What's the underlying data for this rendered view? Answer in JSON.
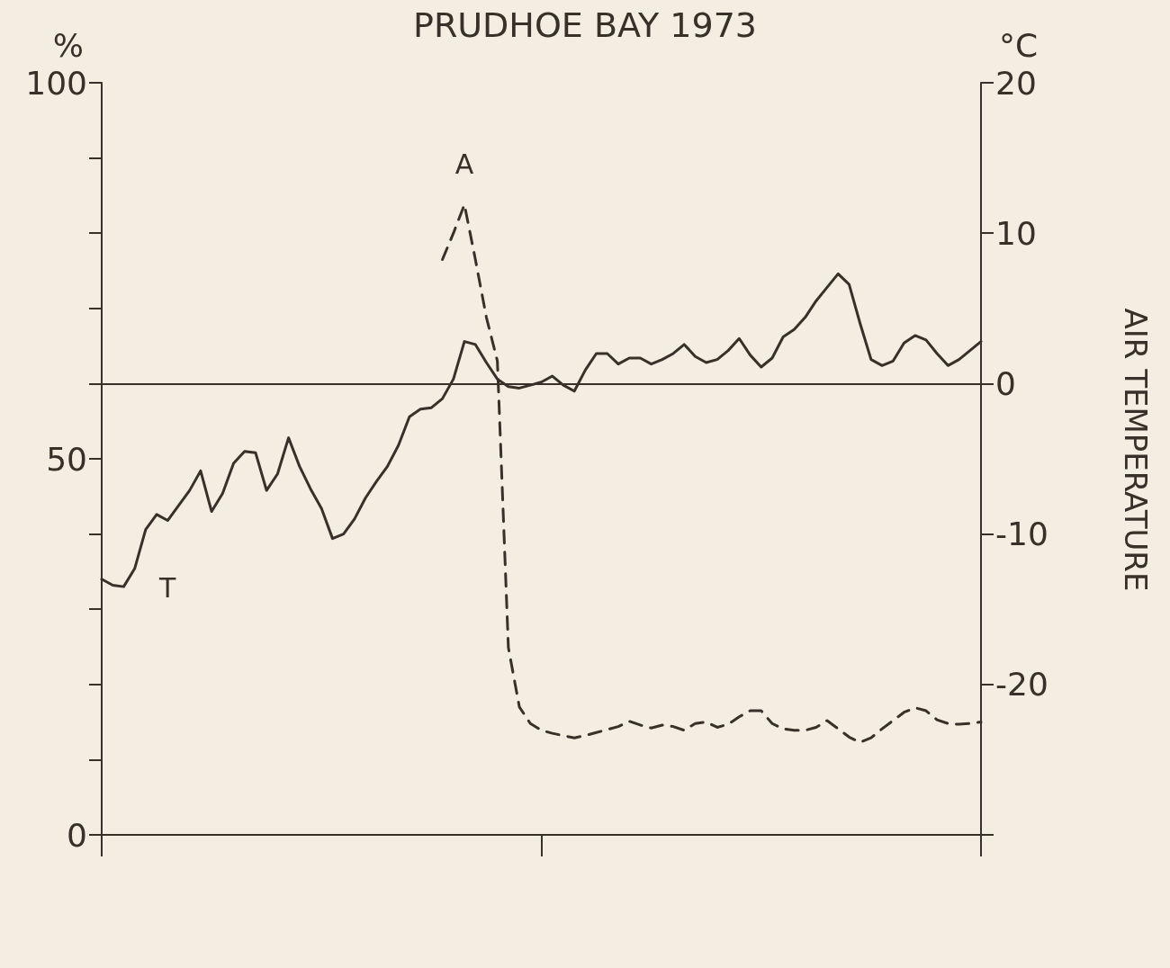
{
  "chart_data": {
    "type": "line",
    "title": "PRUDHOE BAY 1973",
    "ylabel": "%",
    "y2label": "°C",
    "annotations": [
      "AIR TEMPERATURE"
    ],
    "categories": [
      null,
      null,
      null,
      null,
      null,
      null,
      null,
      null,
      null,
      null,
      null,
      null,
      null,
      null,
      null,
      null,
      null,
      null,
      null,
      null,
      null,
      null,
      null,
      null,
      null,
      null,
      null,
      null,
      null,
      null,
      null,
      null,
      null,
      null,
      null,
      null,
      null,
      null,
      null,
      null,
      null,
      null,
      null,
      null,
      null,
      null,
      null,
      null,
      null,
      null,
      null,
      null,
      null,
      null,
      null,
      null,
      null,
      null,
      null,
      null,
      null,
      null,
      null,
      null,
      null,
      null,
      null,
      null,
      null,
      null,
      null,
      null,
      null,
      null,
      null,
      null,
      null,
      null,
      null,
      null,
      null
    ],
    "ylim": [
      0,
      100
    ],
    "yticks": [
      0,
      {
        "value": 10,
        "label": null
      },
      {
        "value": 20,
        "label": null
      },
      {
        "value": 30,
        "label": null
      },
      {
        "value": 40,
        "label": null
      },
      50,
      {
        "value": 60,
        "label": null
      },
      {
        "value": 70,
        "label": null
      },
      {
        "value": 80,
        "label": null
      },
      {
        "value": 90,
        "label": null
      },
      100
    ],
    "y2lim": [
      -30,
      20
    ],
    "y2ticks": [
      {
        "value": -30,
        "label": null
      },
      -20,
      -10,
      0,
      10,
      20
    ],
    "tick_labels": "y",
    "grid": false,
    "legend": false,
    "marker": "none",
    "ref_lines": [
      {
        "axis": "y2",
        "value": 0,
        "color": "#3a302a",
        "line_style": "solid"
      }
    ],
    "series": [
      {
        "name": "A",
        "color": "#3a302a",
        "line_style": "dashed",
        "axis": "y",
        "values": [
          null,
          null,
          null,
          null,
          null,
          null,
          null,
          null,
          null,
          null,
          null,
          null,
          null,
          null,
          null,
          null,
          null,
          null,
          null,
          null,
          null,
          null,
          null,
          null,
          null,
          null,
          null,
          null,
          null,
          null,
          null,
          76.5,
          80,
          83.8,
          76.5,
          68.8,
          63,
          24.9,
          17.0,
          14.8,
          13.9,
          13.5,
          13.2,
          12.9,
          13.2,
          13.6,
          14.0,
          14.4,
          15.1,
          14.6,
          14.2,
          14.6,
          14.4,
          13.9,
          14.8,
          15.0,
          14.3,
          14.7,
          15.7,
          16.5,
          16.5,
          14.8,
          14.1,
          13.9,
          13.9,
          14.3,
          15.2,
          14.1,
          13.0,
          12.3,
          12.9,
          14.1,
          15.2,
          16.3,
          16.9,
          16.5,
          15.3,
          14.8,
          14.7,
          14.8,
          15.0
        ]
      },
      {
        "name": "T",
        "color": "#3a302a",
        "line_style": "solid",
        "axis": "y2",
        "values": [
          -13.0,
          -13.4,
          -13.5,
          -12.3,
          -9.7,
          -8.7,
          -9.1,
          -8.1,
          -7.1,
          -5.8,
          -8.5,
          -7.3,
          -5.3,
          -4.5,
          -4.6,
          -7.1,
          -6.0,
          -3.6,
          -5.5,
          -7.0,
          -8.3,
          -10.3,
          -10.0,
          -9.0,
          -7.6,
          -6.5,
          -5.5,
          -4.1,
          -2.2,
          -1.7,
          -1.6,
          -1.0,
          0.3,
          2.8,
          2.6,
          1.4,
          0.3,
          -0.2,
          -0.3,
          -0.1,
          0.1,
          0.5,
          -0.1,
          -0.5,
          0.9,
          2.0,
          2.0,
          1.3,
          1.7,
          1.7,
          1.3,
          1.6,
          2.0,
          2.6,
          1.8,
          1.4,
          1.6,
          2.2,
          3.0,
          1.9,
          1.1,
          1.7,
          3.1,
          3.6,
          4.4,
          5.5,
          6.4,
          7.3,
          6.6,
          4.0,
          1.6,
          1.2,
          1.5,
          2.7,
          3.2,
          2.9,
          2.0,
          1.2,
          1.6,
          2.2,
          2.8
        ]
      }
    ]
  }
}
